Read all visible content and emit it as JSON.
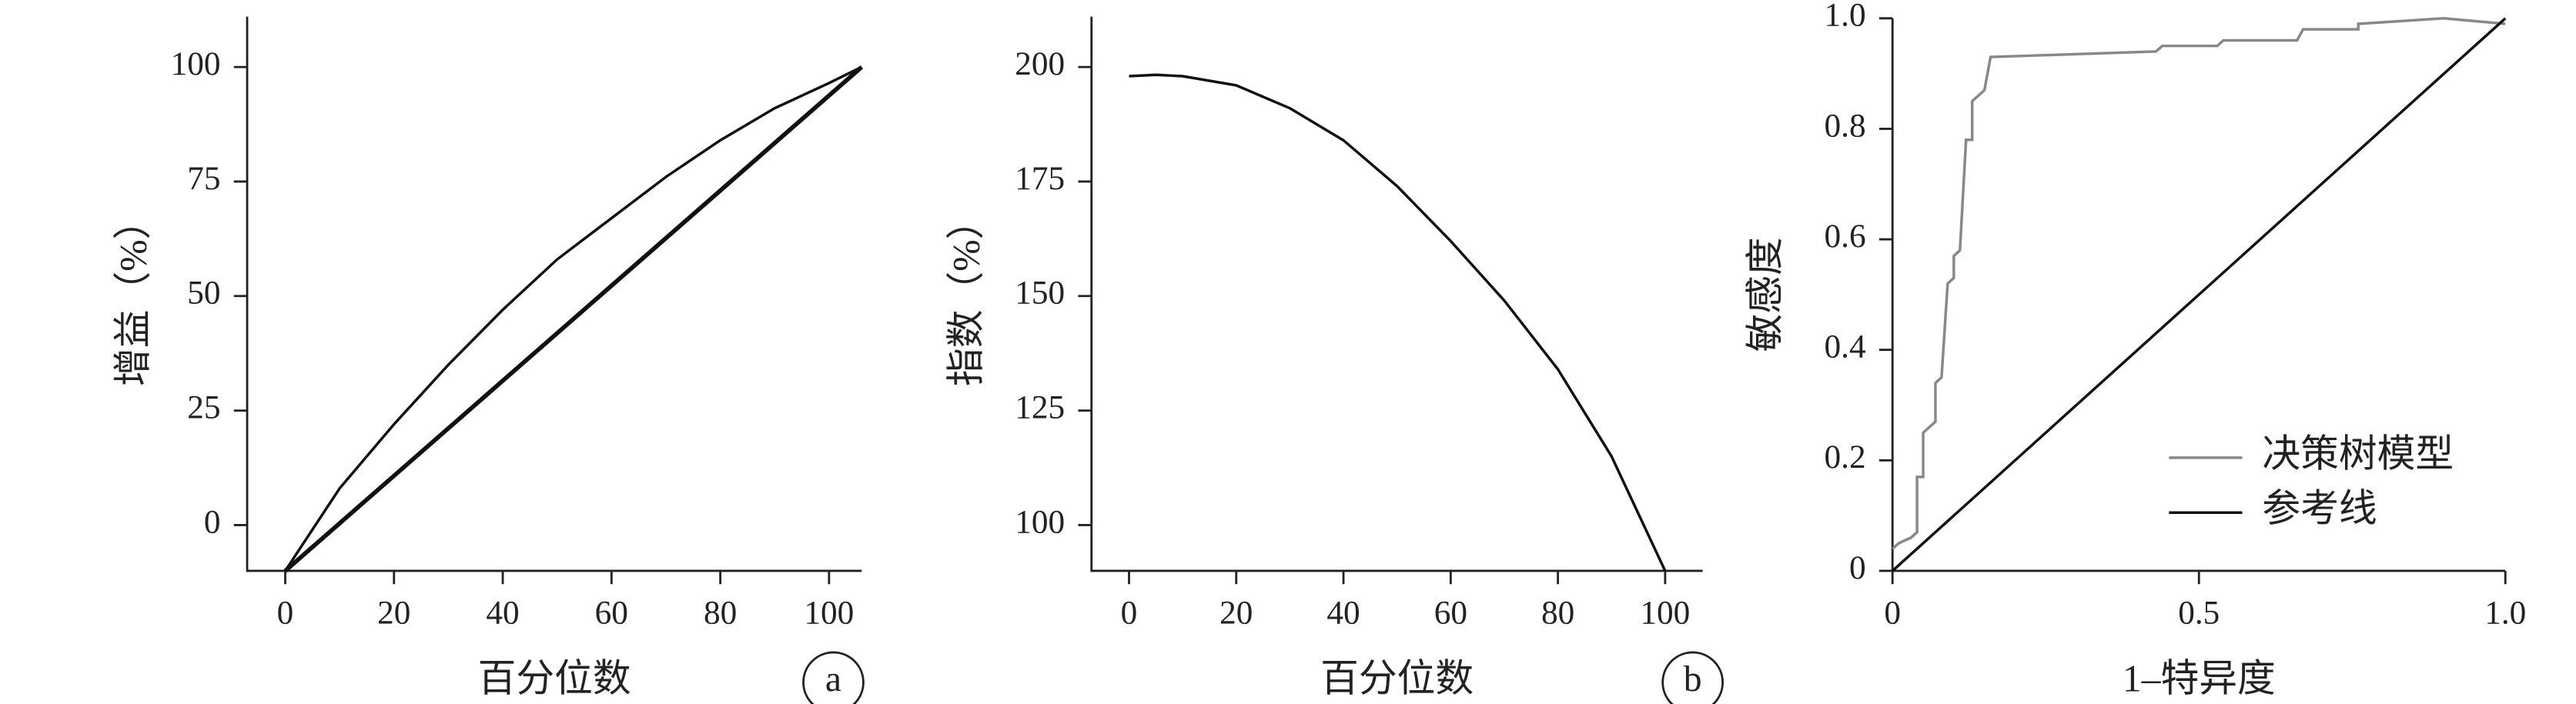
{
  "chart_data": [
    {
      "type": "line",
      "y_label": "增益（%）",
      "x_label": "百分位数",
      "panel_label": "a",
      "xlim": [
        -7,
        106
      ],
      "xticks": [
        0,
        20,
        40,
        60,
        80,
        100
      ],
      "ylim": [
        -10,
        111
      ],
      "yticks": [
        0,
        25,
        50,
        75,
        100
      ],
      "series": [
        {
          "color": "#111111",
          "x": [
            0,
            10,
            20,
            30,
            40,
            50,
            60,
            70,
            80,
            90,
            100,
            106
          ],
          "values": [
            -10,
            8,
            22,
            35,
            47,
            58,
            67,
            76,
            84,
            91,
            96.5,
            100
          ]
        },
        {
          "color": "#111111",
          "x": [
            0,
            106
          ],
          "values": [
            -10,
            100
          ]
        }
      ]
    },
    {
      "type": "line",
      "y_label": "指数（%）",
      "x_label": "百分位数",
      "panel_label": "b",
      "xlim": [
        -7,
        107
      ],
      "xticks": [
        0,
        20,
        40,
        60,
        80,
        100
      ],
      "ylim": [
        90,
        211
      ],
      "yticks": [
        100,
        125,
        150,
        175,
        200
      ],
      "series": [
        {
          "color": "#111111",
          "x": [
            0,
            5,
            10,
            20,
            30,
            40,
            50,
            60,
            70,
            80,
            90,
            100
          ],
          "values": [
            198,
            198.3,
            198,
            196,
            191,
            184,
            174,
            162,
            149,
            134,
            115,
            90
          ]
        }
      ]
    },
    {
      "type": "line",
      "y_label": "敏感度",
      "x_label": "1–特异度",
      "xlim": [
        0,
        1
      ],
      "xticks": [
        0,
        0.5,
        {
          "value": 1,
          "label": "1.0"
        }
      ],
      "ylim": [
        0,
        1
      ],
      "yticks": [
        0,
        0.2,
        0.4,
        0.6,
        0.8,
        {
          "value": 1,
          "label": "1.0"
        }
      ],
      "series": [
        {
          "name": "决策树模型",
          "color": "#888888",
          "x": [
            0,
            0.01,
            0.03,
            0.04,
            0.04,
            0.05,
            0.05,
            0.07,
            0.07,
            0.08,
            0.09,
            0.1,
            0.1,
            0.11,
            0.12,
            0.13,
            0.13,
            0.14,
            0.15,
            0.16,
            0.43,
            0.44,
            0.53,
            0.54,
            0.66,
            0.67,
            0.76,
            0.76,
            0.9,
            1.0
          ],
          "values": [
            0.04,
            0.05,
            0.06,
            0.07,
            0.17,
            0.17,
            0.25,
            0.27,
            0.34,
            0.35,
            0.52,
            0.53,
            0.57,
            0.58,
            0.78,
            0.78,
            0.85,
            0.86,
            0.87,
            0.93,
            0.94,
            0.95,
            0.95,
            0.96,
            0.96,
            0.98,
            0.98,
            0.99,
            1.0,
            0.99
          ]
        },
        {
          "name": "参考线",
          "color": "#111111",
          "x": [
            0,
            1
          ],
          "values": [
            0,
            1
          ]
        }
      ]
    }
  ]
}
